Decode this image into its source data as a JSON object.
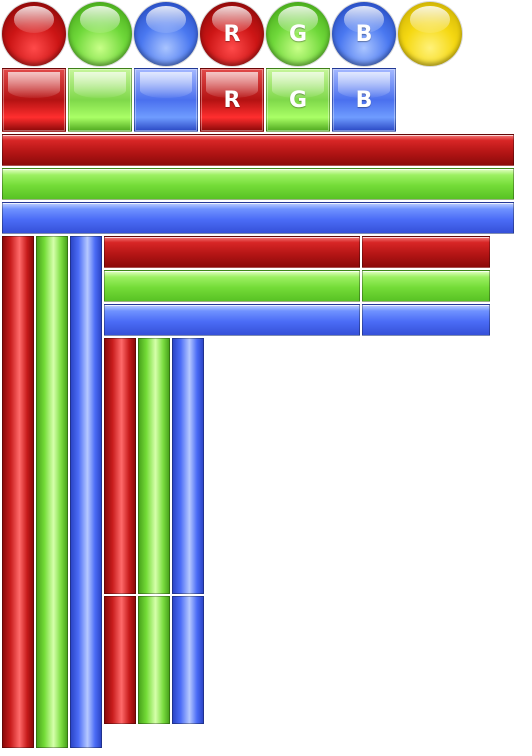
{
  "spheres": [
    {
      "name": "red-sphere",
      "color": "#cc1515",
      "letter": ""
    },
    {
      "name": "green-sphere",
      "color": "#6fd83a",
      "letter": ""
    },
    {
      "name": "blue-sphere",
      "color": "#4a78f0",
      "letter": ""
    },
    {
      "name": "red-sphere-r",
      "color": "#cc1515",
      "letter": "R"
    },
    {
      "name": "green-sphere-g",
      "color": "#6fd83a",
      "letter": "G"
    },
    {
      "name": "blue-sphere-b",
      "color": "#4a78f0",
      "letter": "B"
    },
    {
      "name": "yellow-sphere",
      "color": "#f5d812",
      "letter": ""
    }
  ],
  "squares": [
    {
      "name": "red-square",
      "color": "#b41212",
      "letter": ""
    },
    {
      "name": "green-square",
      "color": "#7fd84a",
      "letter": ""
    },
    {
      "name": "blue-square",
      "color": "#4a70ee",
      "letter": ""
    },
    {
      "name": "red-square-r",
      "color": "#b41212",
      "letter": "R"
    },
    {
      "name": "green-square-g",
      "color": "#7fd84a",
      "letter": "G"
    },
    {
      "name": "blue-square-b",
      "color": "#4a70ee",
      "letter": "B"
    }
  ],
  "colors": {
    "red": "#b61616",
    "green": "#74dc38",
    "blue": "#4b6cf6",
    "yellow": "#f5d812"
  }
}
